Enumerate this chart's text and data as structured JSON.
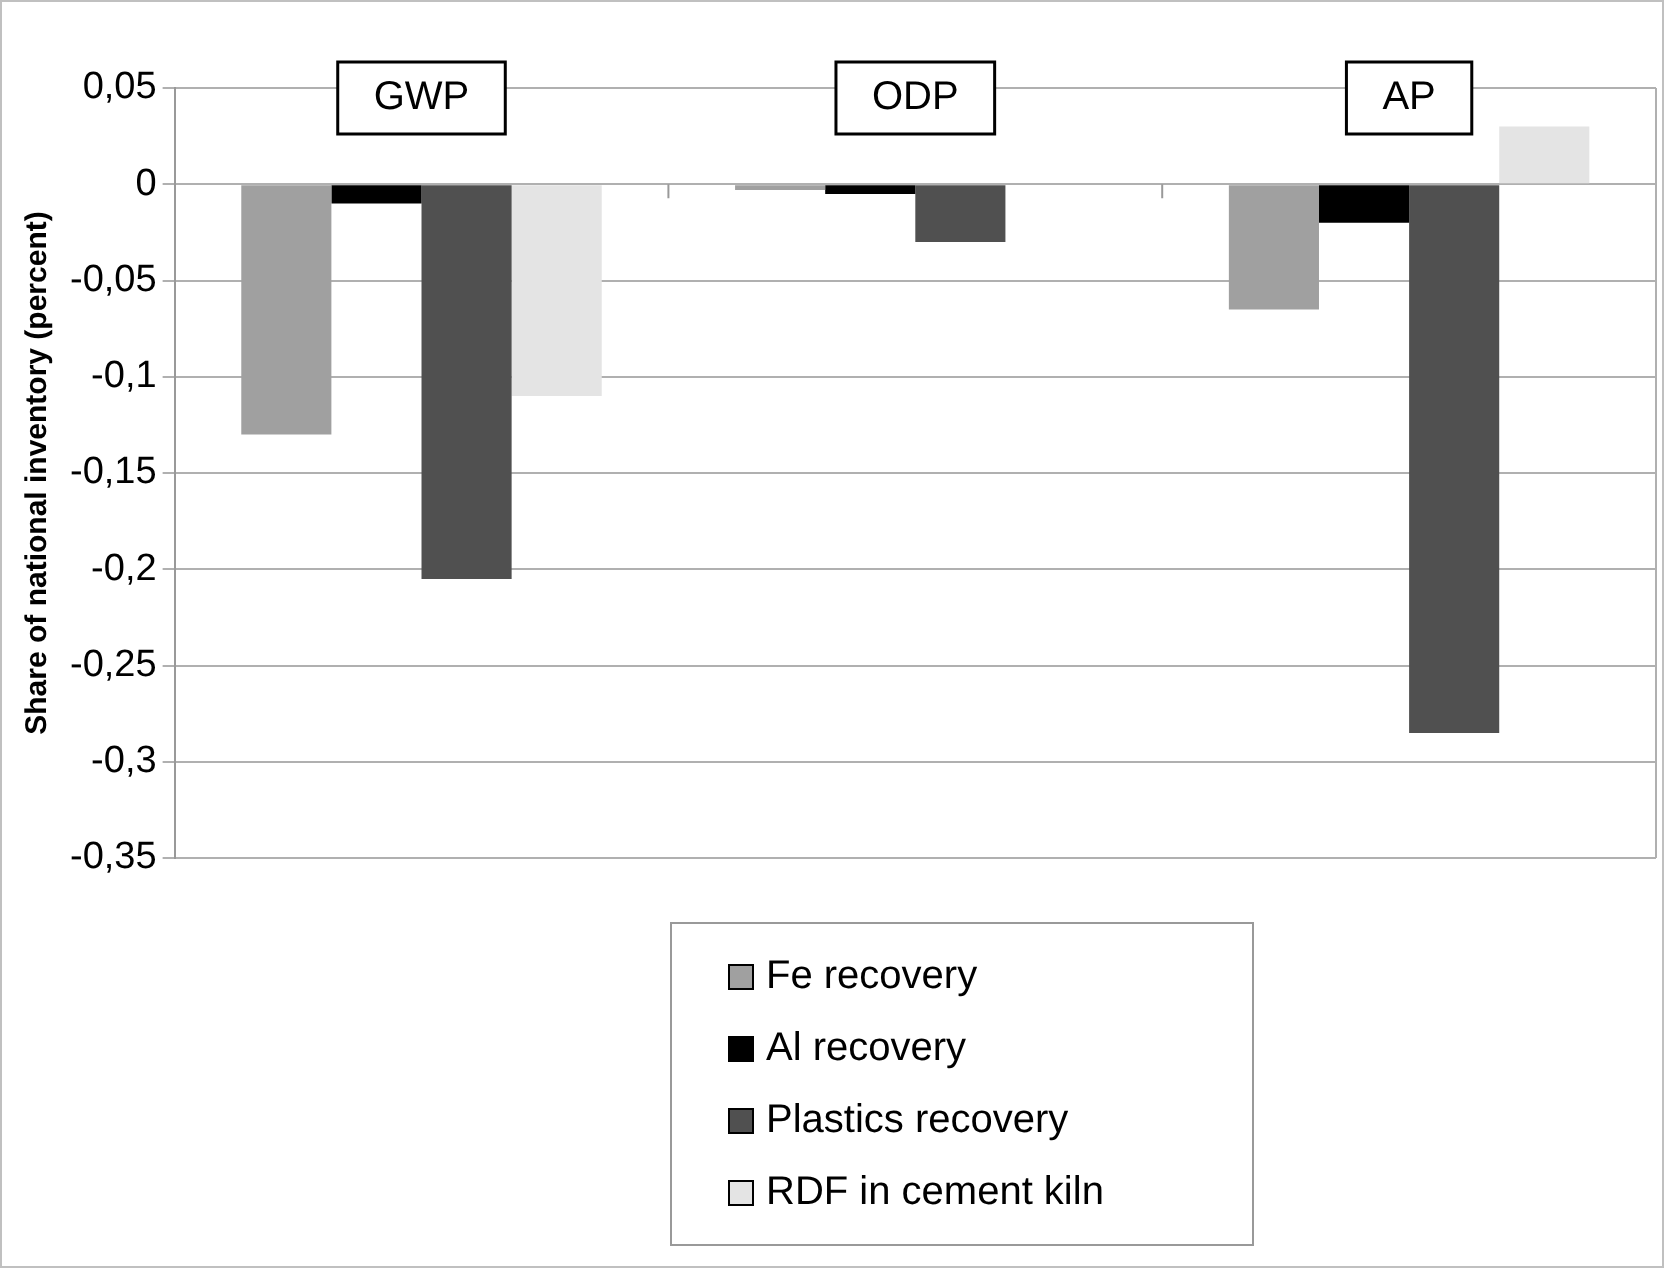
{
  "chart_data": {
    "type": "bar",
    "ylabel": "Share of national inventory (percent)",
    "categories": [
      "GWP",
      "ODP",
      "AP"
    ],
    "series": [
      {
        "name": "Fe recovery",
        "color": "#a0a0a0",
        "values": [
          -0.13,
          -0.003,
          -0.065
        ]
      },
      {
        "name": "Al recovery",
        "color": "#000000",
        "values": [
          -0.01,
          -0.005,
          -0.02
        ]
      },
      {
        "name": "Plastics recovery",
        "color": "#505050",
        "values": [
          -0.205,
          -0.03,
          -0.285
        ]
      },
      {
        "name": "RDF in cement kiln",
        "color": "#e4e4e4",
        "values": [
          -0.11,
          0,
          0.03
        ]
      }
    ],
    "ylim": [
      -0.35,
      0.05
    ],
    "yticks": [
      {
        "value": 0.05,
        "label": "0,05"
      },
      0,
      {
        "value": -0.05,
        "label": "-0,05"
      },
      {
        "value": -0.1,
        "label": "-0,1"
      },
      {
        "value": -0.15,
        "label": "-0,15"
      },
      {
        "value": -0.2,
        "label": "-0,2"
      },
      {
        "value": -0.25,
        "label": "-0,25"
      },
      {
        "value": -0.3,
        "label": "-0,3"
      },
      {
        "value": -0.35,
        "label": "-0,35"
      }
    ],
    "grid": "y",
    "legend": "bottom"
  }
}
